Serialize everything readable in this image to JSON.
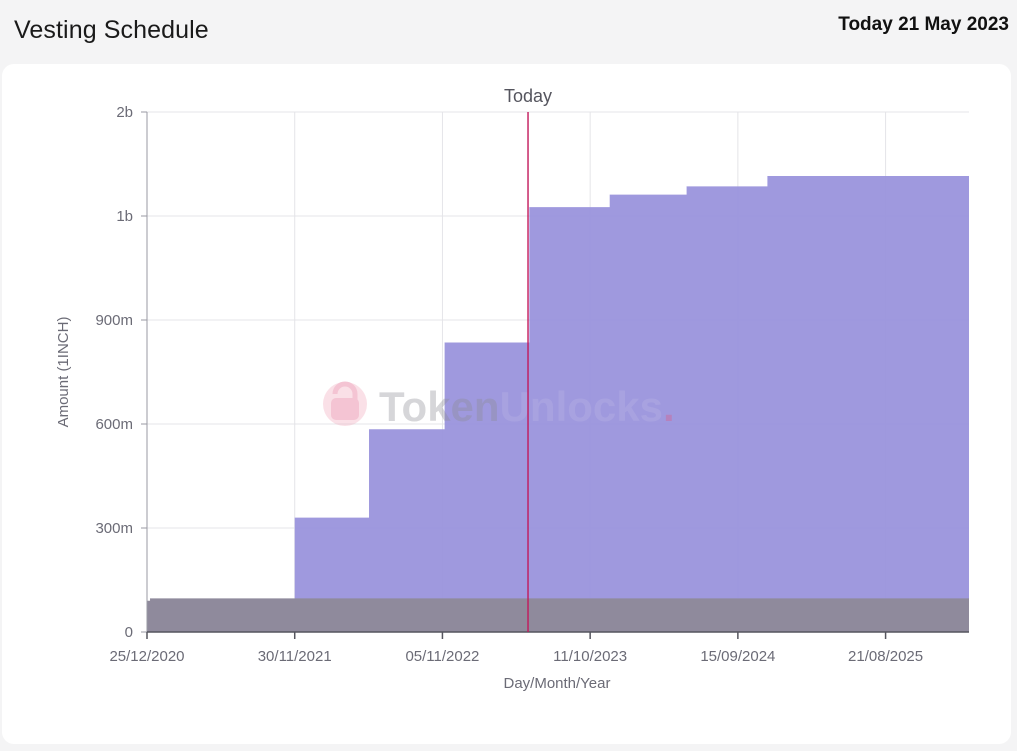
{
  "header": {
    "title": "Vesting Schedule",
    "today_label": "Today 21 May 2023"
  },
  "watermark": {
    "brand_part1": "Token",
    "brand_part2": "Unlocks",
    "brand_dot": "."
  },
  "chart_data": {
    "type": "area",
    "xlabel": "Day/Month/Year",
    "ylabel": "Amount (1INCH)",
    "x_domain": [
      "2020-12-25",
      "2026-03-01"
    ],
    "ylim": [
      0,
      2000000000
    ],
    "x_ticks": [
      {
        "date": "2020-12-25",
        "label": "25/12/2020"
      },
      {
        "date": "2021-11-30",
        "label": "30/11/2021"
      },
      {
        "date": "2022-11-05",
        "label": "05/11/2022"
      },
      {
        "date": "2023-10-11",
        "label": "11/10/2023"
      },
      {
        "date": "2024-09-15",
        "label": "15/09/2024"
      },
      {
        "date": "2025-08-21",
        "label": "21/08/2025"
      }
    ],
    "y_ticks": [
      {
        "value": 0,
        "label": "0"
      },
      {
        "value": 300000000,
        "label": "300m"
      },
      {
        "value": 600000000,
        "label": "600m"
      },
      {
        "value": 900000000,
        "label": "900m"
      },
      {
        "value": 1000000000,
        "label": "1b"
      },
      {
        "value": 2000000000,
        "label": "2b"
      }
    ],
    "today_marker": {
      "date": "2023-05-21",
      "label": "Today"
    },
    "grid": true,
    "series": [
      {
        "color": "#8f8a9c",
        "step": true,
        "points": [
          {
            "x": "2020-12-25",
            "y": 90000000
          },
          {
            "x": "2021-01-01",
            "y": 97000000
          },
          {
            "x": "2026-03-01",
            "y": 97000000
          }
        ]
      },
      {
        "color": "#9a93dc",
        "step": true,
        "points": [
          {
            "x": "2021-11-30",
            "y": 330000000
          },
          {
            "x": "2022-05-20",
            "y": 585000000
          },
          {
            "x": "2022-11-10",
            "y": 835000000
          },
          {
            "x": "2023-05-24",
            "y": 1085000000
          },
          {
            "x": "2023-11-25",
            "y": 1205000000
          },
          {
            "x": "2024-05-20",
            "y": 1285000000
          },
          {
            "x": "2024-11-22",
            "y": 1385000000
          },
          {
            "x": "2026-03-01",
            "y": 1387000000
          }
        ]
      }
    ]
  }
}
